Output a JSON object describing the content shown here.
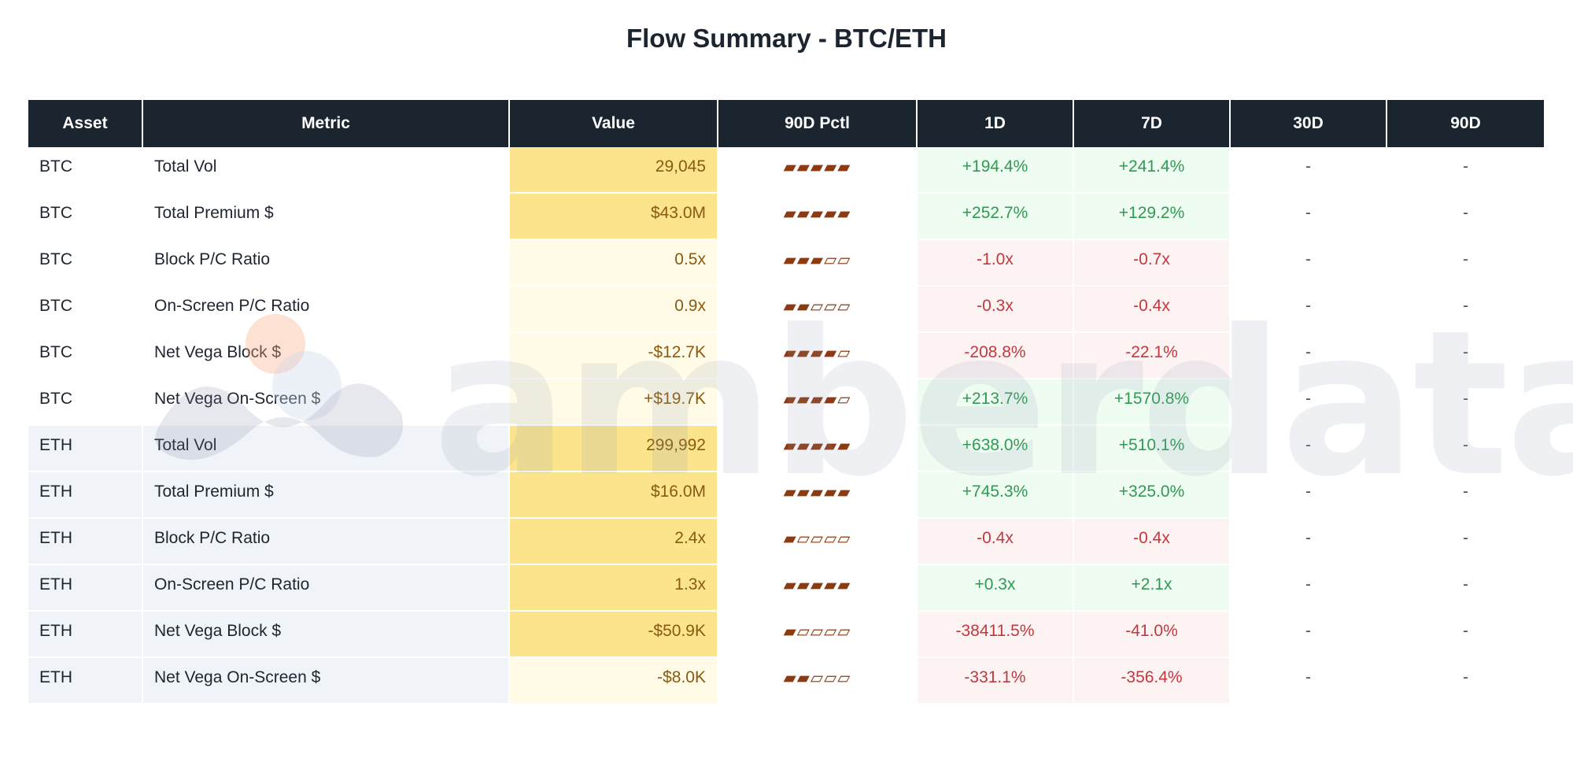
{
  "title": "Flow Summary - BTC/ETH",
  "watermark": {
    "text": "amberdata"
  },
  "chart_data": {
    "type": "table",
    "title": "Flow Summary - BTC/ETH",
    "columns": [
      "Asset",
      "Metric",
      "Value",
      "90D Pctl",
      "1D",
      "7D",
      "30D",
      "90D"
    ],
    "rows": [
      {
        "asset": "BTC",
        "metric": "Total Vol",
        "value": "29,045",
        "pctl": "▰▰▰▰▰",
        "d1": "+194.4%",
        "d7": "+241.4%",
        "d30": "-",
        "d90": "-",
        "value_level": "high",
        "d1_sign": "pos",
        "d7_sign": "pos"
      },
      {
        "asset": "BTC",
        "metric": "Total Premium $",
        "value": "$43.0M",
        "pctl": "▰▰▰▰▰",
        "d1": "+252.7%",
        "d7": "+129.2%",
        "d30": "-",
        "d90": "-",
        "value_level": "high",
        "d1_sign": "pos",
        "d7_sign": "pos"
      },
      {
        "asset": "BTC",
        "metric": "Block P/C Ratio",
        "value": "0.5x",
        "pctl": "▰▰▰▱▱",
        "d1": "-1.0x",
        "d7": "-0.7x",
        "d30": "-",
        "d90": "-",
        "value_level": "low",
        "d1_sign": "neg",
        "d7_sign": "neg"
      },
      {
        "asset": "BTC",
        "metric": "On-Screen P/C Ratio",
        "value": "0.9x",
        "pctl": "▰▰▱▱▱",
        "d1": "-0.3x",
        "d7": "-0.4x",
        "d30": "-",
        "d90": "-",
        "value_level": "low",
        "d1_sign": "neg",
        "d7_sign": "neg"
      },
      {
        "asset": "BTC",
        "metric": "Net Vega Block $",
        "value": "-$12.7K",
        "pctl": "▰▰▰▰▱",
        "d1": "-208.8%",
        "d7": "-22.1%",
        "d30": "-",
        "d90": "-",
        "value_level": "low",
        "d1_sign": "neg",
        "d7_sign": "neg"
      },
      {
        "asset": "BTC",
        "metric": "Net Vega On-Screen $",
        "value": "+$19.7K",
        "pctl": "▰▰▰▰▱",
        "d1": "+213.7%",
        "d7": "+1570.8%",
        "d30": "-",
        "d90": "-",
        "value_level": "low",
        "d1_sign": "pos",
        "d7_sign": "pos"
      },
      {
        "asset": "ETH",
        "metric": "Total Vol",
        "value": "299,992",
        "pctl": "▰▰▰▰▰",
        "d1": "+638.0%",
        "d7": "+510.1%",
        "d30": "-",
        "d90": "-",
        "value_level": "high",
        "d1_sign": "pos",
        "d7_sign": "pos"
      },
      {
        "asset": "ETH",
        "metric": "Total Premium $",
        "value": "$16.0M",
        "pctl": "▰▰▰▰▰",
        "d1": "+745.3%",
        "d7": "+325.0%",
        "d30": "-",
        "d90": "-",
        "value_level": "high",
        "d1_sign": "pos",
        "d7_sign": "pos"
      },
      {
        "asset": "ETH",
        "metric": "Block P/C Ratio",
        "value": "2.4x",
        "pctl": "▰▱▱▱▱",
        "d1": "-0.4x",
        "d7": "-0.4x",
        "d30": "-",
        "d90": "-",
        "value_level": "high",
        "d1_sign": "neg",
        "d7_sign": "neg"
      },
      {
        "asset": "ETH",
        "metric": "On-Screen P/C Ratio",
        "value": "1.3x",
        "pctl": "▰▰▰▰▰",
        "d1": "+0.3x",
        "d7": "+2.1x",
        "d30": "-",
        "d90": "-",
        "value_level": "high",
        "d1_sign": "pos",
        "d7_sign": "pos"
      },
      {
        "asset": "ETH",
        "metric": "Net Vega Block $",
        "value": "-$50.9K",
        "pctl": "▰▱▱▱▱",
        "d1": "-38411.5%",
        "d7": "-41.0%",
        "d30": "-",
        "d90": "-",
        "value_level": "high",
        "d1_sign": "neg",
        "d7_sign": "neg"
      },
      {
        "asset": "ETH",
        "metric": "Net Vega On-Screen $",
        "value": "-$8.0K",
        "pctl": "▰▰▱▱▱",
        "d1": "-331.1%",
        "d7": "-356.4%",
        "d30": "-",
        "d90": "-",
        "value_level": "low",
        "d1_sign": "neg",
        "d7_sign": "neg"
      }
    ]
  }
}
